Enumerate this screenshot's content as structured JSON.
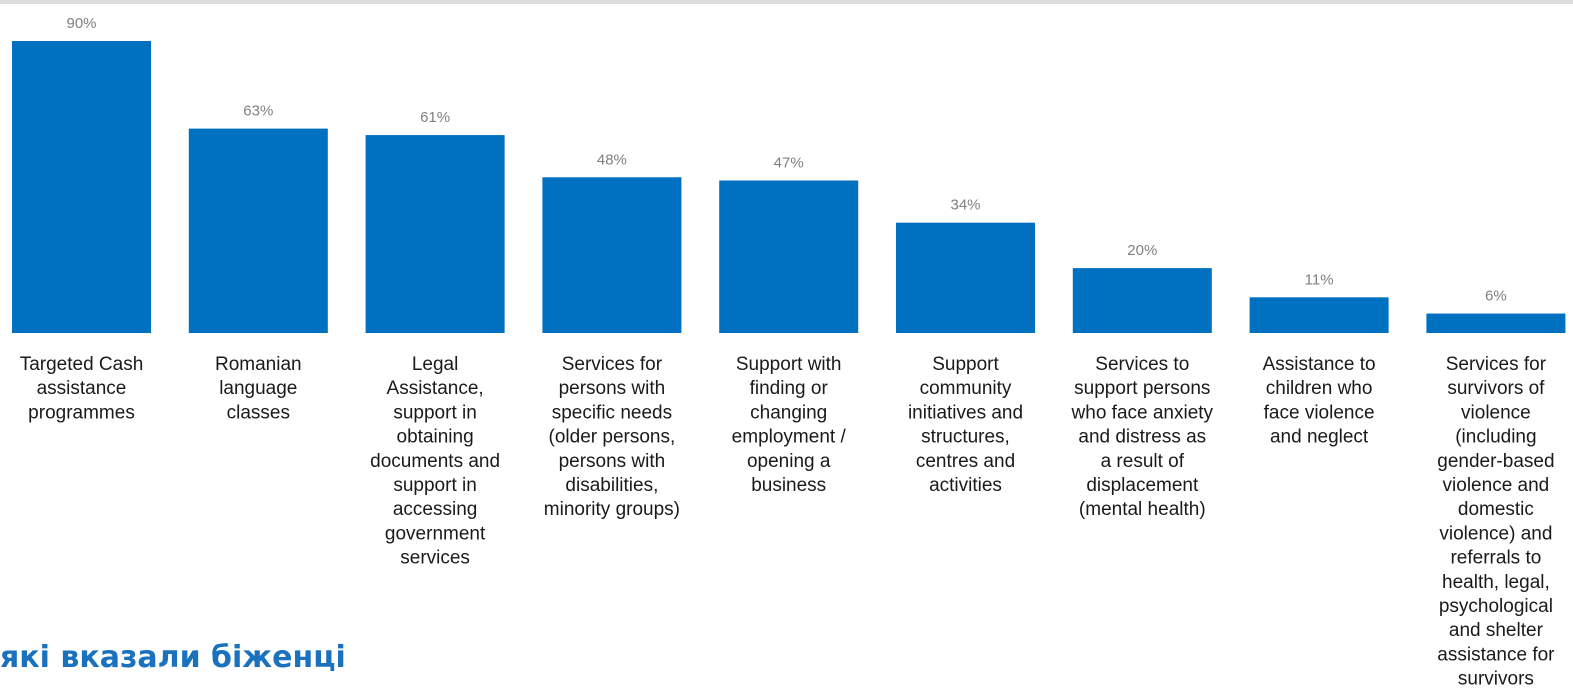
{
  "chart_data": {
    "type": "bar",
    "categories": [
      "Targeted Cash assistance programmes",
      "Romanian language classes",
      "Legal Assistance, support in obtaining documents and support in accessing government services",
      "Services for persons with specific needs (older persons, persons with disabilities, minority groups)",
      "Support with finding or changing employment / opening a business",
      "Support community initiatives and structures, centres and activities",
      "Services to support persons who face anxiety and distress as a result of displacement (mental health)",
      "Assistance to children who face violence and neglect",
      "Services for survivors of violence (including gender-based violence and domestic violence) and referrals to health, legal, psychological and shelter assistance for survivors"
    ],
    "category_lines": [
      [
        "Targeted Cash",
        "assistance",
        "programmes"
      ],
      [
        "Romanian",
        "language",
        "classes"
      ],
      [
        "Legal",
        "Assistance,",
        "support in",
        "obtaining",
        "documents and",
        "support in",
        "accessing",
        "government",
        "services"
      ],
      [
        "Services for",
        "persons with",
        "specific needs",
        "(older persons,",
        "persons with",
        "disabilities,",
        "minority groups)"
      ],
      [
        "Support with",
        "finding or",
        "changing",
        "employment /",
        "opening a",
        "business"
      ],
      [
        "Support",
        "community",
        "initiatives and",
        "structures,",
        "centres and",
        "activities"
      ],
      [
        "Services to",
        "support persons",
        "who face anxiety",
        "and distress as",
        "a result of",
        "displacement",
        "(mental health)"
      ],
      [
        "Assistance to",
        "children who",
        "face violence",
        "and neglect"
      ],
      [
        "Services for",
        "survivors of",
        "violence",
        "(including",
        "gender-based",
        "violence and",
        "domestic",
        "violence) and",
        "referrals to",
        "health, legal,",
        "psychological",
        "and shelter",
        "assistance for",
        "survivors"
      ]
    ],
    "values": [
      90,
      63,
      61,
      48,
      47,
      34,
      20,
      11,
      6
    ],
    "value_labels": [
      "90%",
      "63%",
      "61%",
      "48%",
      "47%",
      "34%",
      "20%",
      "11%",
      "6%"
    ],
    "unit": "%",
    "ylim": [
      0,
      90
    ],
    "grid": false,
    "bar_color": "#0070c0"
  },
  "footer": {
    "partial_title": "які вказали біженці"
  }
}
